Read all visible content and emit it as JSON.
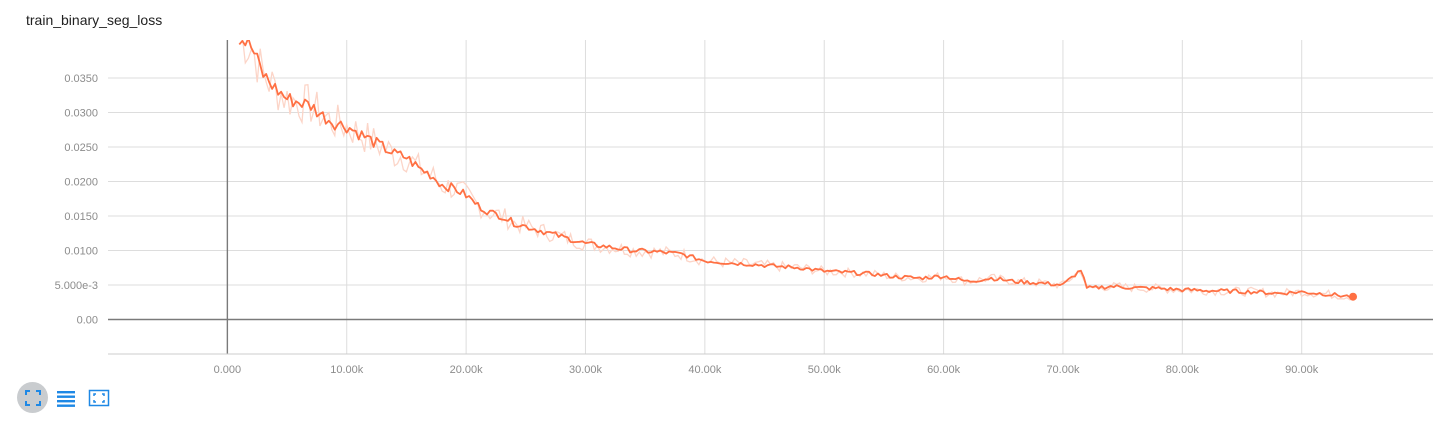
{
  "chart_title": "train_binary_seg_loss",
  "toolbar": {
    "buttons": [
      {
        "icon": "fullscreen-icon",
        "active": true
      },
      {
        "icon": "list-icon",
        "active": false
      },
      {
        "icon": "fit-domain-icon",
        "active": false
      }
    ],
    "accent": "#1e88e5"
  },
  "chart_data": {
    "type": "line",
    "title": "train_binary_seg_loss",
    "xlabel": "",
    "ylabel": "",
    "xlim": [
      -10000,
      101000
    ],
    "ylim": [
      -0.005,
      0.0405
    ],
    "grid": true,
    "x_ticks": [
      0,
      10000,
      20000,
      30000,
      40000,
      50000,
      60000,
      70000,
      80000,
      90000
    ],
    "x_tick_labels": [
      "0.000",
      "10.00k",
      "20.00k",
      "30.00k",
      "40.00k",
      "50.00k",
      "60.00k",
      "70.00k",
      "80.00k",
      "90.00k"
    ],
    "y_ticks": [
      0,
      0.005,
      0.01,
      0.015,
      0.02,
      0.025,
      0.03,
      0.035
    ],
    "y_tick_labels": [
      "0.00",
      "5.000e-3",
      "0.0100",
      "0.0150",
      "0.0200",
      "0.0250",
      "0.0300",
      "0.0350"
    ],
    "series": [
      {
        "color": "#ff7043",
        "raw_color": "#fcd5c8",
        "x": [
          1000,
          2000,
          3000,
          4000,
          5000,
          6000,
          7000,
          8000,
          9000,
          10000,
          11000,
          12000,
          13000,
          14000,
          15000,
          16000,
          17000,
          18000,
          19000,
          20000,
          21000,
          22000,
          23000,
          24000,
          25000,
          26000,
          27000,
          28000,
          29000,
          30000,
          32000,
          34000,
          36000,
          38000,
          40000,
          42000,
          44000,
          46000,
          48000,
          50000,
          52000,
          54000,
          56000,
          58000,
          60000,
          62000,
          64000,
          66000,
          68000,
          70000,
          71500,
          72000,
          74000,
          76000,
          78000,
          80000,
          82000,
          84000,
          86000,
          88000,
          90000,
          92000,
          94300
        ],
        "y": [
          0.041,
          0.0395,
          0.0355,
          0.0335,
          0.032,
          0.0315,
          0.031,
          0.0295,
          0.0285,
          0.028,
          0.027,
          0.026,
          0.025,
          0.024,
          0.0235,
          0.022,
          0.021,
          0.0195,
          0.019,
          0.018,
          0.0165,
          0.0155,
          0.015,
          0.014,
          0.0135,
          0.013,
          0.0125,
          0.012,
          0.0115,
          0.011,
          0.0105,
          0.01,
          0.0098,
          0.0095,
          0.0085,
          0.0082,
          0.008,
          0.0077,
          0.0075,
          0.007,
          0.0068,
          0.0066,
          0.0062,
          0.006,
          0.0063,
          0.0055,
          0.006,
          0.0055,
          0.0053,
          0.005,
          0.0072,
          0.0045,
          0.0048,
          0.0046,
          0.0045,
          0.0043,
          0.0042,
          0.0041,
          0.004,
          0.0038,
          0.004,
          0.0037,
          0.0033
        ]
      }
    ]
  }
}
